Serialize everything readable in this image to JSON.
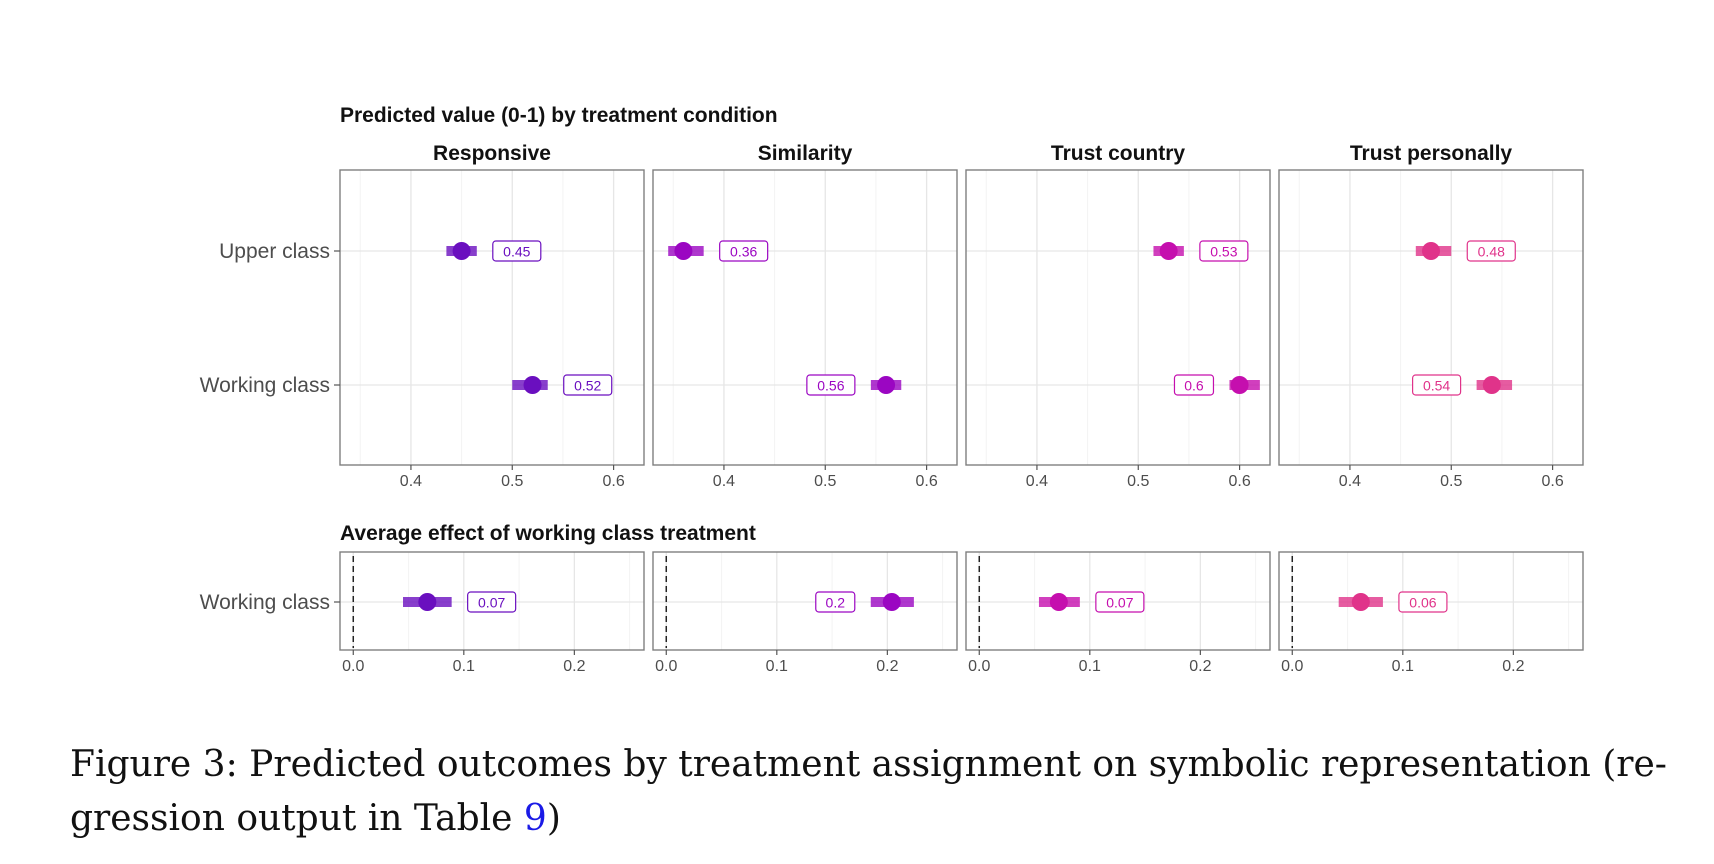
{
  "colors": {
    "responsive": "#6a0fbf",
    "similarity": "#9b06c2",
    "trust_country": "#c50fae",
    "trust_personally": "#e0338a",
    "panel_border": "#7f7f7f",
    "grid": "#ebebeb"
  },
  "chart_data": [
    {
      "type": "scatter",
      "title": "Predicted value (0-1) by treatment condition",
      "facets": [
        "Responsive",
        "Similarity",
        "Trust country",
        "Trust personally"
      ],
      "categories": [
        "Upper class",
        "Working class"
      ],
      "xlim": [
        0.33,
        0.63
      ],
      "xticks": [
        0.4,
        0.5,
        0.6
      ],
      "xtick_labels": [
        "0.4",
        "0.5",
        "0.6"
      ],
      "grid": true,
      "series": [
        {
          "facet": "Responsive",
          "points": [
            {
              "y": "Upper class",
              "x": 0.45,
              "lo": 0.435,
              "hi": 0.465,
              "label": "0.45"
            },
            {
              "y": "Working class",
              "x": 0.52,
              "lo": 0.5,
              "hi": 0.535,
              "label": "0.52"
            }
          ]
        },
        {
          "facet": "Similarity",
          "points": [
            {
              "y": "Upper class",
              "x": 0.36,
              "lo": 0.345,
              "hi": 0.38,
              "label": "0.36"
            },
            {
              "y": "Working class",
              "x": 0.56,
              "lo": 0.545,
              "hi": 0.575,
              "label": "0.56"
            }
          ]
        },
        {
          "facet": "Trust country",
          "points": [
            {
              "y": "Upper class",
              "x": 0.53,
              "lo": 0.515,
              "hi": 0.545,
              "label": "0.53"
            },
            {
              "y": "Working class",
              "x": 0.6,
              "lo": 0.59,
              "hi": 0.62,
              "label": "0.6"
            }
          ]
        },
        {
          "facet": "Trust personally",
          "points": [
            {
              "y": "Upper class",
              "x": 0.48,
              "lo": 0.465,
              "hi": 0.5,
              "label": "0.48"
            },
            {
              "y": "Working class",
              "x": 0.54,
              "lo": 0.525,
              "hi": 0.56,
              "label": "0.54"
            }
          ]
        }
      ]
    },
    {
      "type": "scatter",
      "title": "Average effect of working class treatment",
      "facets": [
        "Responsive",
        "Similarity",
        "Trust country",
        "Trust personally"
      ],
      "categories": [
        "Working class"
      ],
      "xlim": [
        -0.012,
        0.263
      ],
      "xticks": [
        0.0,
        0.1,
        0.2
      ],
      "xtick_labels": [
        "0.0",
        "0.1",
        "0.2"
      ],
      "reference_line": 0,
      "grid": true,
      "series": [
        {
          "facet": "Responsive",
          "points": [
            {
              "y": "Working class",
              "x": 0.067,
              "lo": 0.045,
              "hi": 0.089,
              "label": "0.07"
            }
          ]
        },
        {
          "facet": "Similarity",
          "points": [
            {
              "y": "Working class",
              "x": 0.204,
              "lo": 0.185,
              "hi": 0.224,
              "label": "0.2"
            }
          ]
        },
        {
          "facet": "Trust country",
          "points": [
            {
              "y": "Working class",
              "x": 0.072,
              "lo": 0.054,
              "hi": 0.091,
              "label": "0.07"
            }
          ]
        },
        {
          "facet": "Trust personally",
          "points": [
            {
              "y": "Working class",
              "x": 0.062,
              "lo": 0.042,
              "hi": 0.082,
              "label": "0.06"
            }
          ]
        }
      ]
    }
  ],
  "caption": {
    "text_before": "Figure 3: Predicted outcomes by treatment assignment on symbolic representation (re-gression output in Table ",
    "ref": "9",
    "text_after": ")"
  }
}
